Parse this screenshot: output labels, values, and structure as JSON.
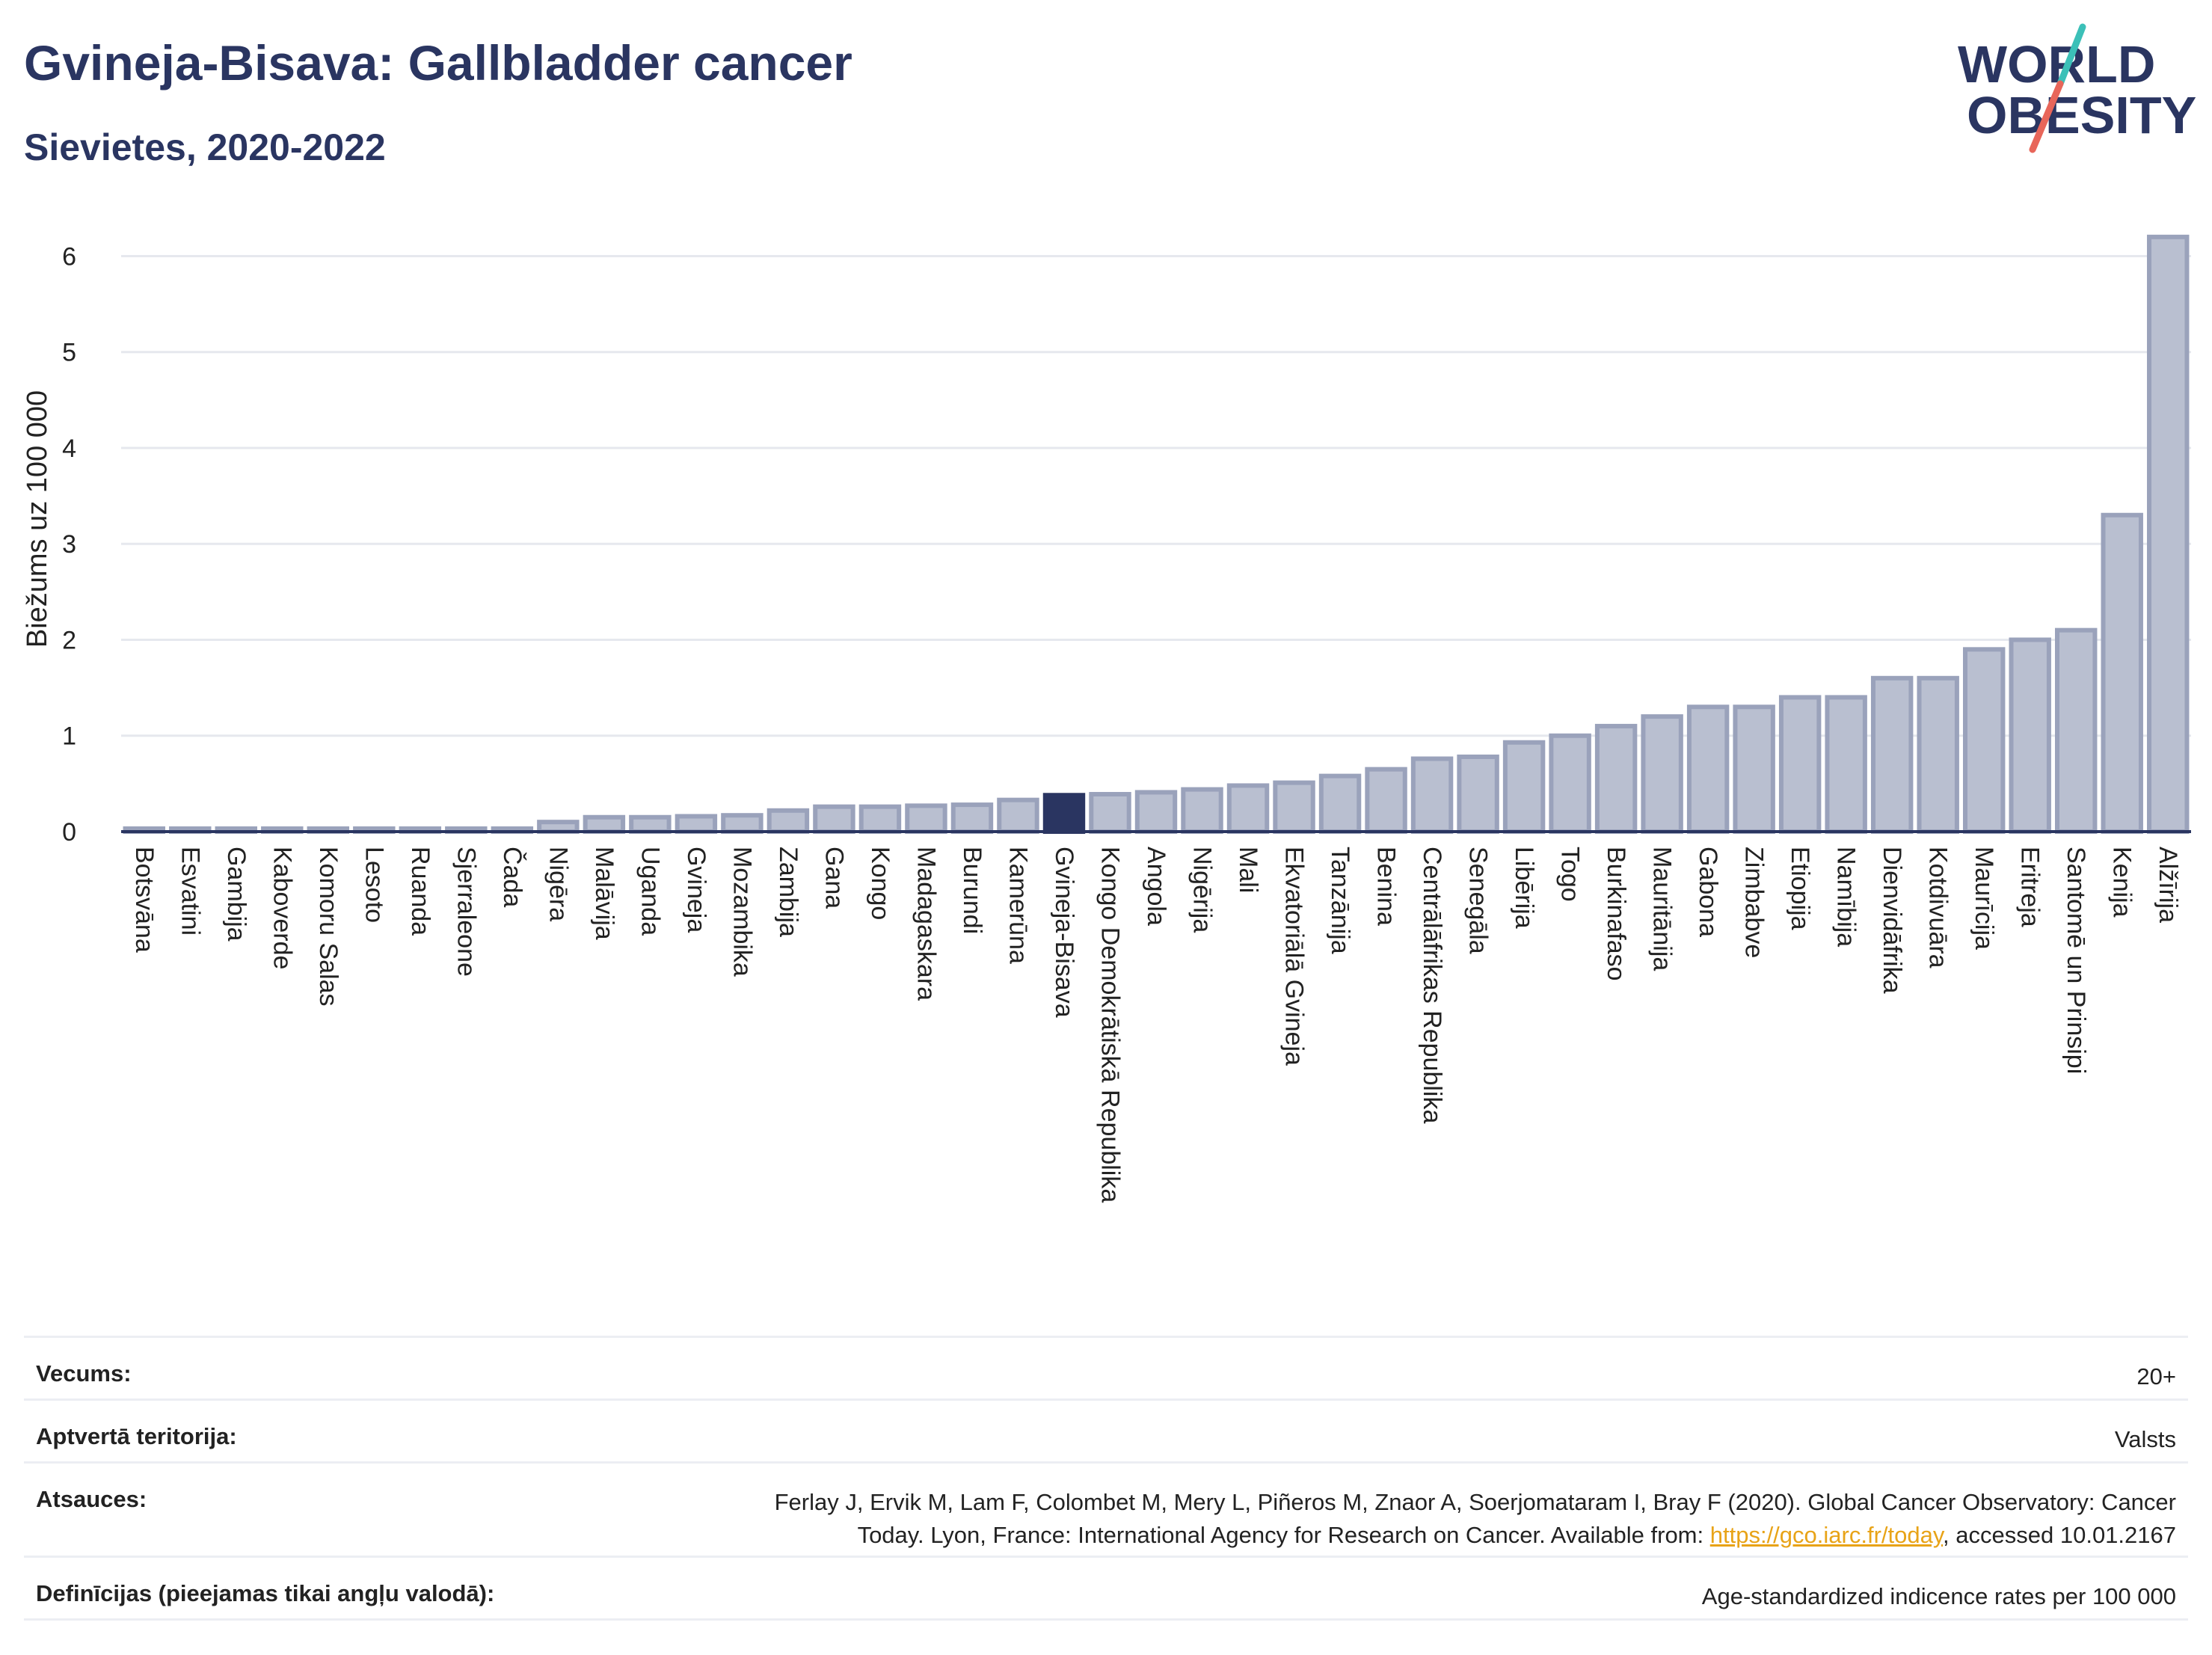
{
  "header": {
    "title": "Gvineja-Bisava: Gallbladder cancer",
    "subtitle": "Sievietes, 2020-2022"
  },
  "logo": {
    "line1": "WORLD",
    "line2": "OBESITY",
    "colors": {
      "text": "#2a3561",
      "slash_top": "#3cc0b8",
      "slash_bottom": "#e8665a"
    }
  },
  "colors": {
    "bar_fill": "#b9bfd0",
    "bar_stroke": "#9aa2bb",
    "highlight": "#2a3561",
    "grid": "#e6e8ee",
    "axis": "#2a3561"
  },
  "chart_data": {
    "type": "bar",
    "title": "",
    "xlabel": "",
    "ylabel": "Biežums uz 100 000",
    "ylim": [
      0,
      6.3
    ],
    "yticks": [
      0,
      1,
      2,
      3,
      4,
      5,
      6
    ],
    "grid": true,
    "highlight_category": "Gvineja-Bisava",
    "categories": [
      "Botsvāna",
      "Esvatini",
      "Gambija",
      "Kaboverde",
      "Komoru Salas",
      "Lesoto",
      "Ruanda",
      "Sjerraleone",
      "Čada",
      "Nigēra",
      "Malāvija",
      "Uganda",
      "Gvineja",
      "Mozambika",
      "Zambija",
      "Gana",
      "Kongo",
      "Madagaskara",
      "Burundi",
      "Kamerūna",
      "Gvineja-Bisava",
      "Kongo Demokrātiskā Republika",
      "Angola",
      "Nigērija",
      "Mali",
      "Ekvatoriālā Gvineja",
      "Tanzānija",
      "Benina",
      "Centrālāfrikas Republika",
      "Senegāla",
      "Libērija",
      "Togo",
      "Burkinafaso",
      "Mauritānija",
      "Gabona",
      "Zimbabve",
      "Etiopija",
      "Namībija",
      "Dienvidāfrika",
      "Kotdivuāra",
      "Maurīcija",
      "Eritreja",
      "Santomē un Prinsipi",
      "Kenija",
      "Alžīrija"
    ],
    "values": [
      0.01,
      0.01,
      0.01,
      0.01,
      0.01,
      0.01,
      0.01,
      0.01,
      0.01,
      0.1,
      0.15,
      0.15,
      0.16,
      0.17,
      0.22,
      0.26,
      0.26,
      0.27,
      0.28,
      0.33,
      0.38,
      0.39,
      0.41,
      0.44,
      0.48,
      0.51,
      0.58,
      0.65,
      0.76,
      0.78,
      0.93,
      1.0,
      1.1,
      1.2,
      1.3,
      1.3,
      1.4,
      1.4,
      1.6,
      1.6,
      1.9,
      2.0,
      2.1,
      3.3,
      6.2
    ]
  },
  "meta": {
    "rows": [
      {
        "label": "Vecums:",
        "value": "20+"
      },
      {
        "label": "Aptvertā teritorija:",
        "value": "Valsts"
      },
      {
        "label": "Atsauces:",
        "value_line1": "Ferlay J, Ervik M, Lam F, Colombet M, Mery L, Piñeros M, Znaor A, Soerjomataram I, Bray F (2020). Global Cancer Observatory: Cancer",
        "value_line2_pre": "Today. Lyon, France: International Agency for Research on Cancer. Available from: ",
        "link": "https://gco.iarc.fr/today",
        "value_line2_post": ", accessed 10.01.2167"
      },
      {
        "label": "Definīcijas (pieejamas tikai angļu valodā):",
        "value": "Age-standardized indicence rates per 100 000"
      }
    ]
  }
}
